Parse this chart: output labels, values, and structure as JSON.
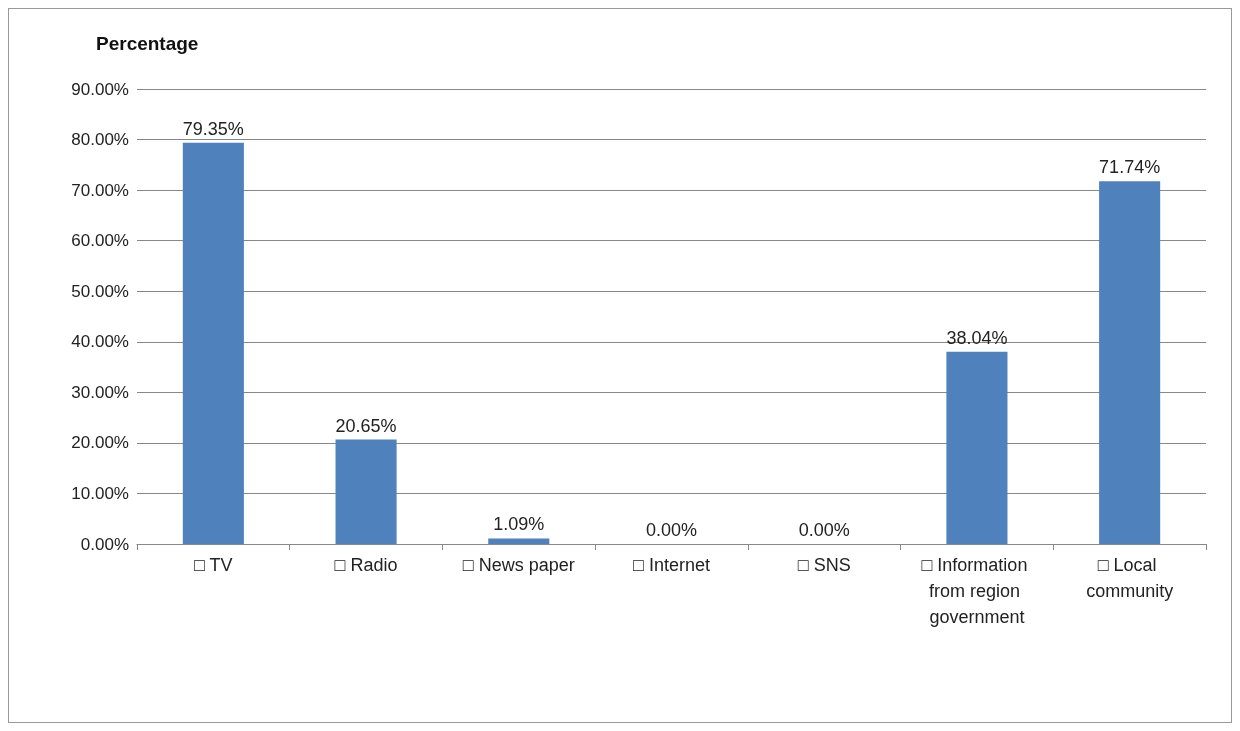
{
  "chart_data": {
    "type": "bar",
    "ylabel": "Percentage",
    "categories": [
      "□ TV",
      "□ Radio",
      "□ News paper",
      "□ Internet",
      "□ SNS",
      "□ Information from region government",
      "□ Local community"
    ],
    "values": [
      79.35,
      20.65,
      1.09,
      0,
      0,
      38.04,
      71.74
    ],
    "value_labels": [
      "79.35%",
      "20.65%",
      "1.09%",
      "0.00%",
      "0.00%",
      "38.04%",
      "71.74%"
    ],
    "color": "#4f81bd",
    "ylim": [
      0,
      90
    ],
    "yticks": [
      {
        "value": 0,
        "label": "0.00%"
      },
      {
        "value": 10,
        "label": "10.00%"
      },
      {
        "value": 20,
        "label": "20.00%"
      },
      {
        "value": 30,
        "label": "30.00%"
      },
      {
        "value": 40,
        "label": "40.00%"
      },
      {
        "value": 50,
        "label": "50.00%"
      },
      {
        "value": 60,
        "label": "60.00%"
      },
      {
        "value": 70,
        "label": "70.00%"
      },
      {
        "value": 80,
        "label": "80.00%"
      },
      {
        "value": 90,
        "label": "90.00%"
      }
    ],
    "grid": "y"
  }
}
